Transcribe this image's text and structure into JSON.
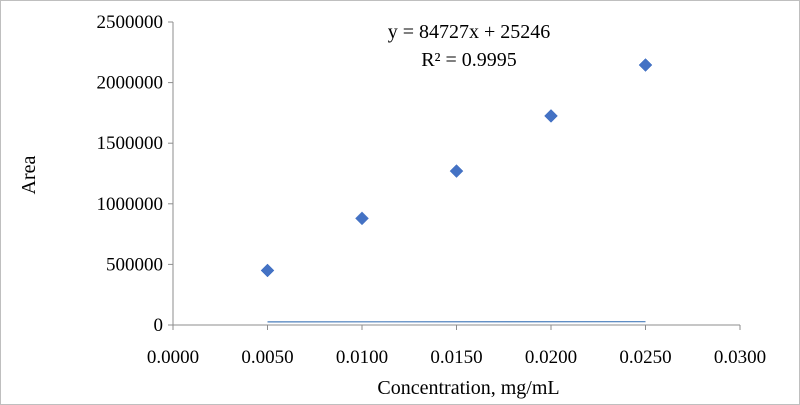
{
  "chart_data": {
    "type": "scatter",
    "xlabel": "Concentration, mg/mL",
    "ylabel": "Area",
    "xlim": [
      0.0,
      0.03
    ],
    "ylim": [
      0,
      2500000
    ],
    "x_ticks": [
      "0.0000",
      "0.0050",
      "0.0100",
      "0.0150",
      "0.0200",
      "0.0250",
      "0.0300"
    ],
    "y_ticks": [
      "0",
      "500000",
      "1000000",
      "1500000",
      "2000000",
      "2500000"
    ],
    "grid": false,
    "legend": "none",
    "series": [
      {
        "x": [
          0.005,
          0.01,
          0.015,
          0.02,
          0.025
        ],
        "y": [
          450000,
          880000,
          1270000,
          1725000,
          2145000
        ],
        "marker": "diamond",
        "color": "#4472C4"
      }
    ],
    "trendline": {
      "type": "linear",
      "slope": 84727,
      "intercept": 25246,
      "color": "#4A7EBB"
    },
    "annotations": {
      "equation": "y = 84727x + 25246",
      "r_squared": "R² = 0.9995"
    }
  }
}
